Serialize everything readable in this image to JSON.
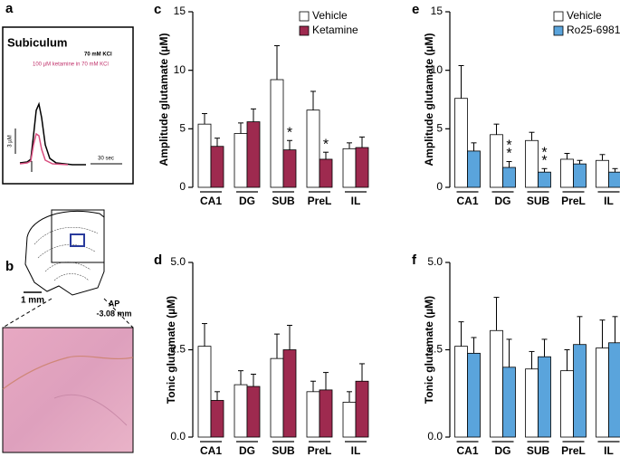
{
  "panel_a": {
    "label": "a",
    "title": "Subiculum",
    "trace_1": "70 mM KCl",
    "trace_2": "100 µM ketamine in 70 mM KCl",
    "scale_y": "3 µM",
    "scale_x": "30 sec"
  },
  "panel_b": {
    "label": "b",
    "scale": "1 mm",
    "ap": "AP",
    "ap_value": "-3.08 mm"
  },
  "chart_data": [
    {
      "type": "bar",
      "label": "c",
      "ylabel": "Amplitude glutamate (µM)",
      "legend": "upper right",
      "categories": [
        "CA1",
        "DG",
        "SUB",
        "PreL",
        "IL"
      ],
      "series": [
        {
          "name": "Vehicle",
          "color": "#ffffff",
          "values": [
            5.4,
            4.6,
            9.2,
            6.6,
            3.3
          ],
          "errors": [
            0.9,
            0.9,
            2.9,
            1.6,
            0.5
          ]
        },
        {
          "name": "Ketamine",
          "color": "#9e2a4f",
          "values": [
            3.5,
            5.6,
            3.2,
            2.4,
            3.4
          ],
          "errors": [
            0.7,
            1.1,
            0.8,
            0.6,
            0.9
          ],
          "annotations": [
            null,
            null,
            "*",
            "*",
            null
          ]
        }
      ],
      "ylim": [
        0,
        15
      ],
      "yticks": [
        0,
        5,
        10,
        15
      ]
    },
    {
      "type": "bar",
      "label": "d",
      "ylabel": "Tonic glutamate (µM)",
      "categories": [
        "CA1",
        "DG",
        "SUB",
        "PreL",
        "IL"
      ],
      "series": [
        {
          "color": "#ffffff",
          "values": [
            2.6,
            1.5,
            2.25,
            1.3,
            1.0
          ],
          "errors": [
            0.65,
            0.4,
            0.7,
            0.3,
            0.3
          ]
        },
        {
          "color": "#9e2a4f",
          "values": [
            1.05,
            1.45,
            2.5,
            1.35,
            1.6
          ],
          "errors": [
            0.25,
            0.35,
            0.7,
            0.5,
            0.5
          ]
        }
      ],
      "ylim": [
        0,
        5
      ],
      "yticks": [
        {
          "value": 0,
          "label": "0.0"
        },
        {
          "value": 2.5,
          "label": "2.5"
        },
        {
          "value": 5,
          "label": "5.0"
        }
      ]
    },
    {
      "type": "bar",
      "label": "e",
      "ylabel": "Amplitude glutamate (µM)",
      "legend": "upper right",
      "categories": [
        "CA1",
        "DG",
        "SUB",
        "PreL",
        "IL"
      ],
      "series": [
        {
          "name": "Vehicle",
          "color": "#ffffff",
          "values": [
            7.6,
            4.5,
            4.0,
            2.4,
            2.3
          ],
          "errors": [
            2.8,
            0.9,
            0.7,
            0.5,
            0.5
          ]
        },
        {
          "name": "Ro25-6981",
          "color": "#5aa4dc",
          "values": [
            3.1,
            1.7,
            1.3,
            2.0,
            1.3
          ],
          "errors": [
            0.7,
            0.5,
            0.3,
            0.3,
            0.3
          ],
          "annotations": [
            null,
            "**",
            "**",
            null,
            null
          ]
        }
      ],
      "ylim": [
        0,
        15
      ],
      "yticks": [
        0,
        5,
        10,
        15
      ]
    },
    {
      "type": "bar",
      "label": "f",
      "ylabel": "Tonic glutamate (µM)",
      "categories": [
        "CA1",
        "DG",
        "SUB",
        "PreL",
        "IL"
      ],
      "series": [
        {
          "color": "#ffffff",
          "values": [
            2.6,
            3.05,
            1.95,
            1.9,
            2.55
          ],
          "errors": [
            0.7,
            0.95,
            0.5,
            0.6,
            0.8
          ]
        },
        {
          "color": "#5aa4dc",
          "values": [
            2.4,
            2.0,
            2.3,
            2.65,
            2.7
          ],
          "errors": [
            0.45,
            0.8,
            0.5,
            0.8,
            0.75
          ]
        }
      ],
      "ylim": [
        0,
        5
      ],
      "yticks": [
        {
          "value": 0,
          "label": "0.0"
        },
        {
          "value": 2.5,
          "label": "2.5"
        },
        {
          "value": 5,
          "label": "5.0"
        }
      ]
    }
  ]
}
